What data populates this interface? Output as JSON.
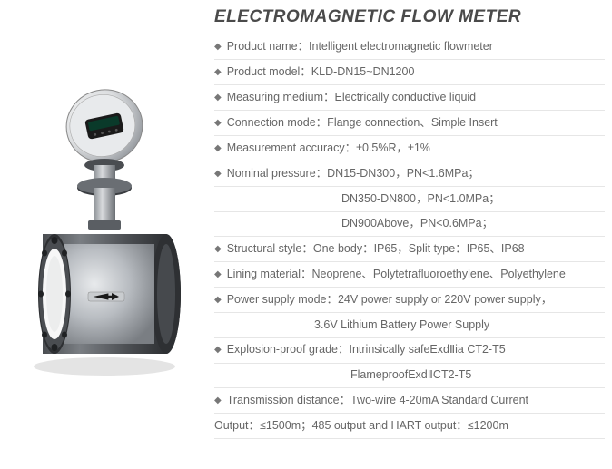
{
  "title": "ELECTROMAGNETIC FLOW METER",
  "text_color": "#666666",
  "title_color": "#4a4a4a",
  "border_color": "#e6e6e6",
  "background_color": "#ffffff",
  "font_size_title": 19,
  "font_size_spec": 12.5,
  "separator": "：",
  "lines": [
    {
      "type": "spec",
      "bullet": true,
      "label": "Product name",
      "value": "Intelligent electromagnetic flowmeter"
    },
    {
      "type": "spec",
      "bullet": true,
      "label": "Product model",
      "value": "KLD-DN15~DN1200"
    },
    {
      "type": "spec",
      "bullet": true,
      "label": "Measuring medium",
      "value": "Electrically conductive liquid"
    },
    {
      "type": "spec",
      "bullet": true,
      "label": "Connection mode",
      "value": "Flange connection、Simple Insert"
    },
    {
      "type": "spec",
      "bullet": true,
      "label": "Measurement accuracy",
      "value": "±0.5%R，±1%"
    },
    {
      "type": "spec",
      "bullet": true,
      "label": "Nominal pressure",
      "value": "DN15-DN300，PN<1.6MPa；"
    },
    {
      "type": "indent",
      "value": "DN350-DN800，PN<1.0MPa；"
    },
    {
      "type": "indent",
      "value": "DN900Above，PN<0.6MPa；"
    },
    {
      "type": "spec",
      "bullet": true,
      "label": "Structural style",
      "value": "One body：IP65，Split type：IP65、IP68"
    },
    {
      "type": "spec",
      "bullet": true,
      "label": "Lining material",
      "value": "Neoprene、Polytetrafluoroethylene、Polyethylene"
    },
    {
      "type": "spec",
      "bullet": true,
      "label": "Power supply mode",
      "value": "24V power supply or 220V power supply，"
    },
    {
      "type": "indent3",
      "value": "3.6V Lithium Battery Power Supply"
    },
    {
      "type": "spec",
      "bullet": true,
      "label": "Explosion-proof grade",
      "value": "Intrinsically safeExdⅡia CT2-T5"
    },
    {
      "type": "indent2",
      "value": "FlameproofExdⅡCT2-T5"
    },
    {
      "type": "spec",
      "bullet": true,
      "label": "Transmission distance",
      "value": "Two-wire 4-20mA Standard Current"
    },
    {
      "type": "output",
      "value": "Output：≤1500m；485 output and HART output：≤1200m"
    }
  ],
  "device_colors": {
    "body_light": "#d8dadd",
    "body_mid": "#a8acb1",
    "body_dark": "#5a5e63",
    "flange_dark": "#2e3033",
    "inner_white": "#f7f7f7",
    "display_black": "#1a1a1a",
    "arrow_black": "#1a1a1a"
  }
}
